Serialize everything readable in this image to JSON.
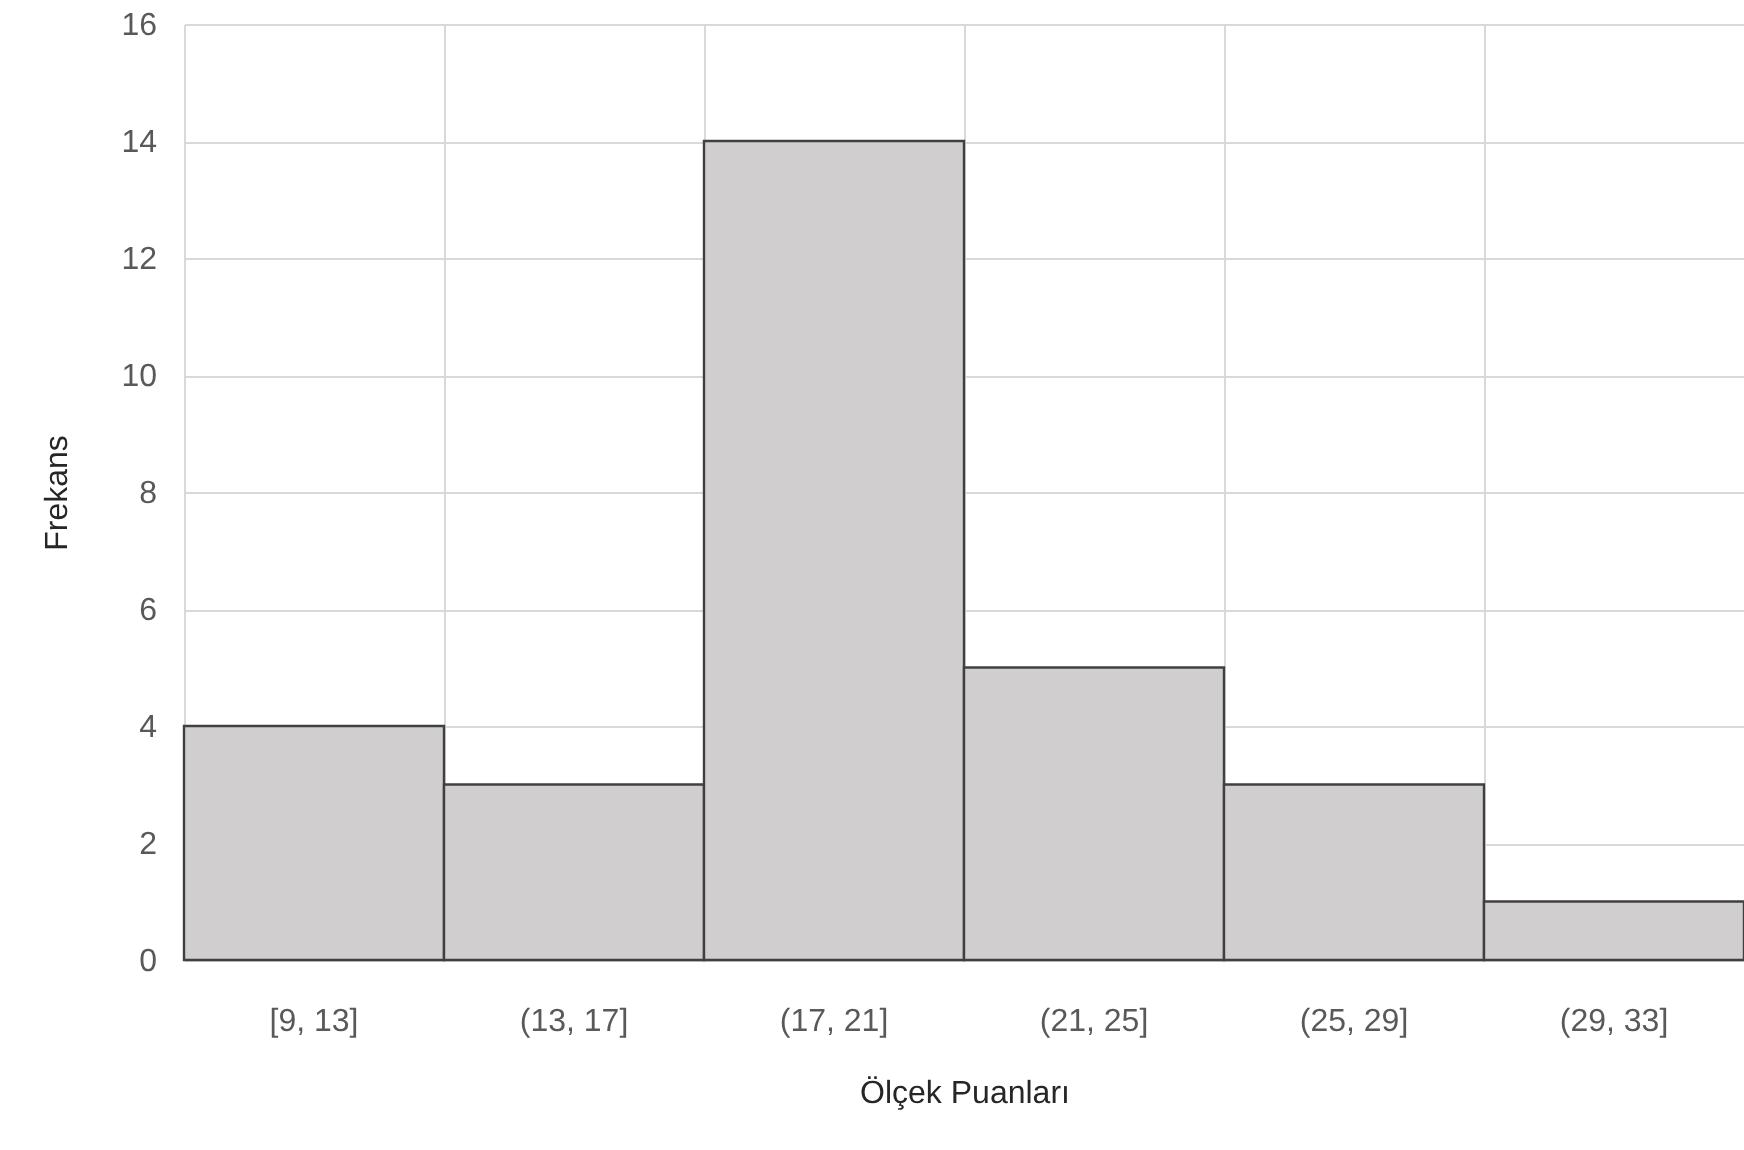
{
  "chart_data": {
    "type": "bar",
    "xlabel": "Ölçek Puanları",
    "ylabel": "Frekans",
    "categories": [
      "[9, 13]",
      "(13, 17]",
      "(17, 21]",
      "(21, 25]",
      "(25, 29]",
      "(29, 33]"
    ],
    "values": [
      4,
      3,
      14,
      5,
      3,
      1
    ],
    "color": "#d0cece",
    "ylim": [
      0,
      16
    ],
    "yticks": [
      0,
      2,
      4,
      6,
      8,
      10,
      12,
      14,
      16
    ],
    "grid": true
  }
}
